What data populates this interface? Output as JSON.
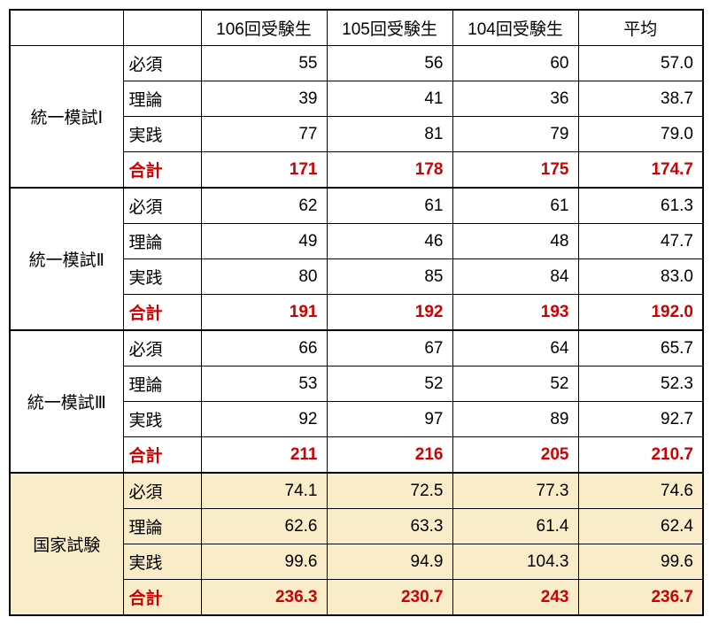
{
  "table": {
    "columns": [
      "",
      "",
      "106回受験生",
      "105回受験生",
      "104回受験生",
      "平均"
    ],
    "highlight_bg": "#f9ecc8",
    "total_color": "#d00000",
    "border_color": "#000000",
    "font_size": 19,
    "sections": [
      {
        "label": "統一模試Ⅰ",
        "highlight": false,
        "rows": [
          {
            "sub": "必須",
            "v106": "55",
            "v105": "56",
            "v104": "60",
            "avg": "57.0",
            "total": false
          },
          {
            "sub": "理論",
            "v106": "39",
            "v105": "41",
            "v104": "36",
            "avg": "38.7",
            "total": false
          },
          {
            "sub": "実践",
            "v106": "77",
            "v105": "81",
            "v104": "79",
            "avg": "79.0",
            "total": false
          },
          {
            "sub": "合計",
            "v106": "171",
            "v105": "178",
            "v104": "175",
            "avg": "174.7",
            "total": true
          }
        ]
      },
      {
        "label": "統一模試Ⅱ",
        "highlight": false,
        "rows": [
          {
            "sub": "必須",
            "v106": "62",
            "v105": "61",
            "v104": "61",
            "avg": "61.3",
            "total": false
          },
          {
            "sub": "理論",
            "v106": "49",
            "v105": "46",
            "v104": "48",
            "avg": "47.7",
            "total": false
          },
          {
            "sub": "実践",
            "v106": "80",
            "v105": "85",
            "v104": "84",
            "avg": "83.0",
            "total": false
          },
          {
            "sub": "合計",
            "v106": "191",
            "v105": "192",
            "v104": "193",
            "avg": "192.0",
            "total": true
          }
        ]
      },
      {
        "label": "統一模試Ⅲ",
        "highlight": false,
        "rows": [
          {
            "sub": "必須",
            "v106": "66",
            "v105": "67",
            "v104": "64",
            "avg": "65.7",
            "total": false
          },
          {
            "sub": "理論",
            "v106": "53",
            "v105": "52",
            "v104": "52",
            "avg": "52.3",
            "total": false
          },
          {
            "sub": "実践",
            "v106": "92",
            "v105": "97",
            "v104": "89",
            "avg": "92.7",
            "total": false
          },
          {
            "sub": "合計",
            "v106": "211",
            "v105": "216",
            "v104": "205",
            "avg": "210.7",
            "total": true
          }
        ]
      },
      {
        "label": "国家試験",
        "highlight": true,
        "rows": [
          {
            "sub": "必須",
            "v106": "74.1",
            "v105": "72.5",
            "v104": "77.3",
            "avg": "74.6",
            "total": false
          },
          {
            "sub": "理論",
            "v106": "62.6",
            "v105": "63.3",
            "v104": "61.4",
            "avg": "62.4",
            "total": false
          },
          {
            "sub": "実践",
            "v106": "99.6",
            "v105": "94.9",
            "v104": "104.3",
            "avg": "99.6",
            "total": false
          },
          {
            "sub": "合計",
            "v106": "236.3",
            "v105": "230.7",
            "v104": "243",
            "avg": "236.7",
            "total": true
          }
        ]
      }
    ]
  }
}
